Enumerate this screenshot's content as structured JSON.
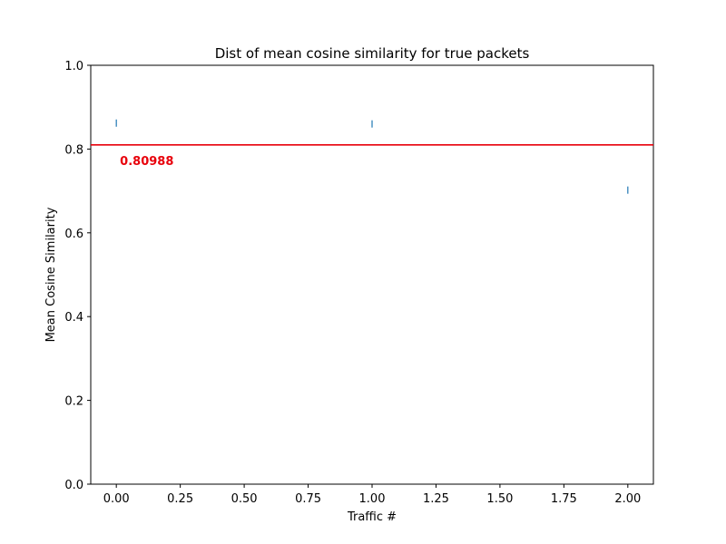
{
  "chart_data": {
    "type": "scatter",
    "title": "Dist of mean cosine similarity for true packets",
    "xlabel": "Traffic #",
    "ylabel": "Mean Cosine Similarity",
    "xlim": [
      -0.1,
      2.1
    ],
    "ylim": [
      0.0,
      1.0
    ],
    "x_ticks": [
      0.0,
      0.25,
      0.5,
      0.75,
      1.0,
      1.25,
      1.5,
      1.75,
      2.0
    ],
    "x_tick_labels": [
      "0.00",
      "0.25",
      "0.50",
      "0.75",
      "1.00",
      "1.25",
      "1.50",
      "1.75",
      "2.00"
    ],
    "y_ticks": [
      0.0,
      0.2,
      0.4,
      0.6,
      0.8,
      1.0
    ],
    "y_tick_labels": [
      "0.0",
      "0.2",
      "0.4",
      "0.6",
      "0.8",
      "1.0"
    ],
    "grid": false,
    "marker": "|",
    "series": [
      {
        "x": [
          0,
          1,
          2
        ],
        "y": [
          0.862,
          0.86,
          0.702
        ],
        "color": "#1f77b4"
      }
    ],
    "reference_line": {
      "y": 0.80988,
      "label": "0.80988",
      "color": "#e8000b"
    }
  }
}
